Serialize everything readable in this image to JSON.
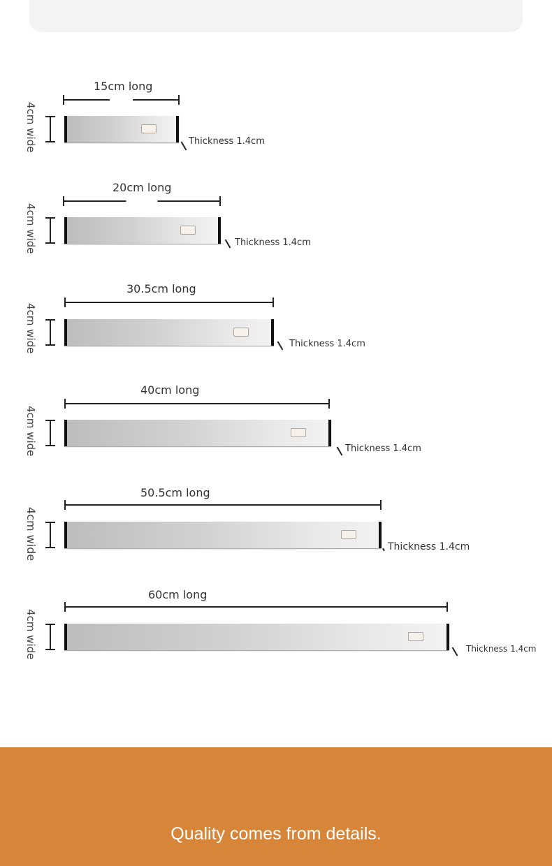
{
  "items": [
    {
      "length_label": "15cm long",
      "length_cm": 15,
      "wide_label": "4cm wide",
      "thickness_label": "Thickness 1.4cm"
    },
    {
      "length_label": "20cm long",
      "length_cm": 20,
      "wide_label": "4cm wide",
      "thickness_label": "Thickness 1.4cm"
    },
    {
      "length_label": "30.5cm long",
      "length_cm": 30.5,
      "wide_label": "4cm wide",
      "thickness_label": "Thickness 1.4cm"
    },
    {
      "length_label": "40cm long",
      "length_cm": 40,
      "wide_label": "4cm wide",
      "thickness_label": "Thickness 1.4cm"
    },
    {
      "length_label": "50.5cm long",
      "length_cm": 50.5,
      "wide_label": "4cm wide",
      "thickness_label": "Thickness 1.4cm"
    },
    {
      "length_label": "60cm long",
      "length_cm": 60,
      "wide_label": "4cm wide",
      "thickness_label": "Thickness 1.4cm"
    }
  ],
  "banner": {
    "tagline": "Quality comes from details.",
    "color": "#d78639"
  }
}
